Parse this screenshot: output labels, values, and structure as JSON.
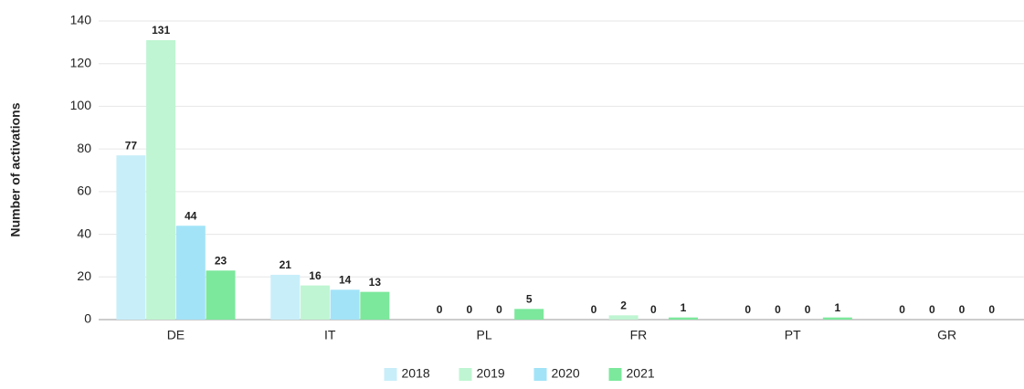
{
  "chart_data": {
    "type": "bar",
    "y_label": "Number of activations",
    "categories": [
      "DE",
      "IT",
      "PL",
      "FR",
      "PT",
      "GR"
    ],
    "series": [
      {
        "name": "2018",
        "color": "#c8eefa",
        "values": [
          77,
          21,
          0,
          0,
          0,
          0
        ]
      },
      {
        "name": "2019",
        "color": "#bff5d2",
        "values": [
          131,
          16,
          0,
          2,
          0,
          0
        ]
      },
      {
        "name": "2020",
        "color": "#a2e3f8",
        "values": [
          44,
          14,
          0,
          0,
          0,
          0
        ]
      },
      {
        "name": "2021",
        "color": "#7ce89c",
        "values": [
          23,
          13,
          5,
          1,
          1,
          0
        ]
      }
    ],
    "ylim": [
      0,
      140
    ],
    "yticks": [
      0,
      20,
      40,
      60,
      80,
      100,
      120,
      140
    ],
    "grid": true,
    "legend": "bottom"
  }
}
